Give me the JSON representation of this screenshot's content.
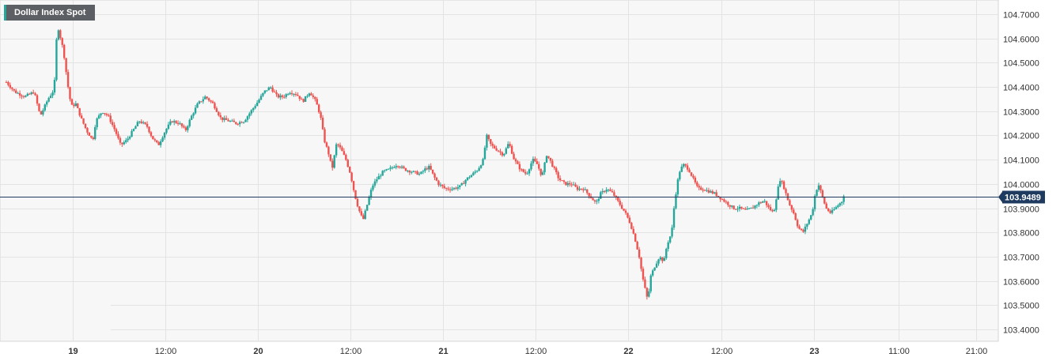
{
  "chart_data": {
    "type": "candlestick",
    "title": "Dollar Index Spot",
    "y_ticks": [
      "103.4000",
      "103.5000",
      "103.6000",
      "103.7000",
      "103.8000",
      "103.9000",
      "104.0000",
      "104.1000",
      "104.2000",
      "104.3000",
      "104.4000",
      "104.5000",
      "104.6000",
      "104.7000"
    ],
    "y_tick_values": [
      103.4,
      103.5,
      103.6,
      103.7,
      103.8,
      103.9,
      104.0,
      104.1,
      104.2,
      104.3,
      104.4,
      104.5,
      104.6,
      104.7
    ],
    "ylim": [
      103.36,
      104.74
    ],
    "x_ticks": [
      {
        "label": "19",
        "t": 27
      },
      {
        "label": "12:00",
        "t": 39
      },
      {
        "label": "20",
        "t": 51
      },
      {
        "label": "12:00",
        "t": 63
      },
      {
        "label": "21",
        "t": 75
      },
      {
        "label": "12:00",
        "t": 87
      },
      {
        "label": "22",
        "t": 99
      },
      {
        "label": "12:00",
        "t": 111
      },
      {
        "label": "23",
        "t": 123
      },
      {
        "label": "11:00",
        "t": 134
      },
      {
        "label": "21:00",
        "t": 144
      }
    ],
    "xlim": [
      18.4,
      146.2
    ],
    "last_price": "103.9489",
    "last_value": 103.9489,
    "grid": true,
    "colors": {
      "up": "#26a69a",
      "down": "#ef5350",
      "last_line": "#1e3a5f",
      "last_badge": "#1e3a5f",
      "grid": "#e3e3e3",
      "plot_bg": "#f7f7f7"
    },
    "close_path": [
      [
        18.4,
        104.42
      ],
      [
        19.5,
        104.38
      ],
      [
        20.8,
        104.36
      ],
      [
        22.0,
        104.38
      ],
      [
        22.8,
        104.28
      ],
      [
        23.8,
        104.35
      ],
      [
        24.6,
        104.39
      ],
      [
        25.0,
        104.66
      ],
      [
        25.8,
        104.55
      ],
      [
        26.4,
        104.4
      ],
      [
        26.8,
        104.32
      ],
      [
        27.4,
        104.33
      ],
      [
        28.1,
        104.27
      ],
      [
        28.8,
        104.22
      ],
      [
        29.6,
        104.18
      ],
      [
        30.0,
        104.26
      ],
      [
        30.8,
        104.3
      ],
      [
        31.6,
        104.28
      ],
      [
        32.5,
        104.22
      ],
      [
        33.2,
        104.16
      ],
      [
        34.0,
        104.18
      ],
      [
        34.8,
        104.22
      ],
      [
        35.6,
        104.26
      ],
      [
        36.6,
        104.24
      ],
      [
        37.3,
        104.19
      ],
      [
        38.1,
        104.16
      ],
      [
        39.0,
        104.22
      ],
      [
        39.8,
        104.26
      ],
      [
        40.8,
        104.25
      ],
      [
        41.6,
        104.22
      ],
      [
        42.4,
        104.28
      ],
      [
        43.2,
        104.33
      ],
      [
        44.2,
        104.36
      ],
      [
        45.2,
        104.33
      ],
      [
        46.2,
        104.27
      ],
      [
        47.2,
        104.26
      ],
      [
        48.2,
        104.25
      ],
      [
        49.2,
        104.26
      ],
      [
        50.1,
        104.3
      ],
      [
        51.0,
        104.34
      ],
      [
        51.8,
        104.38
      ],
      [
        52.6,
        104.4
      ],
      [
        53.5,
        104.36
      ],
      [
        54.3,
        104.36
      ],
      [
        55.1,
        104.38
      ],
      [
        56.0,
        104.37
      ],
      [
        56.8,
        104.34
      ],
      [
        57.7,
        104.38
      ],
      [
        58.5,
        104.34
      ],
      [
        59.1,
        104.28
      ],
      [
        59.6,
        104.18
      ],
      [
        60.2,
        104.12
      ],
      [
        60.6,
        104.06
      ],
      [
        61.2,
        104.17
      ],
      [
        61.8,
        104.14
      ],
      [
        62.4,
        104.1
      ],
      [
        63.0,
        104.04
      ],
      [
        63.5,
        103.96
      ],
      [
        64.0,
        103.9
      ],
      [
        64.6,
        103.85
      ],
      [
        65.2,
        103.92
      ],
      [
        65.8,
        103.99
      ],
      [
        66.4,
        104.02
      ],
      [
        67.2,
        104.05
      ],
      [
        68.0,
        104.06
      ],
      [
        69.0,
        104.08
      ],
      [
        70.0,
        104.06
      ],
      [
        71.0,
        104.05
      ],
      [
        72.0,
        104.04
      ],
      [
        72.6,
        104.06
      ],
      [
        73.2,
        104.07
      ],
      [
        73.8,
        104.03
      ],
      [
        74.4,
        104.0
      ],
      [
        75.3,
        103.98
      ],
      [
        76.2,
        103.98
      ],
      [
        77.2,
        103.99
      ],
      [
        78.0,
        104.02
      ],
      [
        78.8,
        104.04
      ],
      [
        79.5,
        104.06
      ],
      [
        80.2,
        104.1
      ],
      [
        80.6,
        104.2
      ],
      [
        81.2,
        104.16
      ],
      [
        82.0,
        104.14
      ],
      [
        82.8,
        104.12
      ],
      [
        83.5,
        104.17
      ],
      [
        84.2,
        104.1
      ],
      [
        85.0,
        104.06
      ],
      [
        85.8,
        104.04
      ],
      [
        86.6,
        104.1
      ],
      [
        87.2,
        104.08
      ],
      [
        87.8,
        104.03
      ],
      [
        88.4,
        104.12
      ],
      [
        88.8,
        104.1
      ],
      [
        89.4,
        104.06
      ],
      [
        90.0,
        104.02
      ],
      [
        90.8,
        104.0
      ],
      [
        91.6,
        104.0
      ],
      [
        92.4,
        103.98
      ],
      [
        93.2,
        103.98
      ],
      [
        94.0,
        103.95
      ],
      [
        94.8,
        103.92
      ],
      [
        95.4,
        103.96
      ],
      [
        96.2,
        103.98
      ],
      [
        97.0,
        103.96
      ],
      [
        97.8,
        103.92
      ],
      [
        98.6,
        103.88
      ],
      [
        99.2,
        103.84
      ],
      [
        99.8,
        103.78
      ],
      [
        100.4,
        103.7
      ],
      [
        100.8,
        103.62
      ],
      [
        101.2,
        103.56
      ],
      [
        101.5,
        103.52
      ],
      [
        101.9,
        103.62
      ],
      [
        102.4,
        103.66
      ],
      [
        103.0,
        103.7
      ],
      [
        103.6,
        103.68
      ],
      [
        104.0,
        103.75
      ],
      [
        104.6,
        103.8
      ],
      [
        104.9,
        103.9
      ],
      [
        105.3,
        104.0
      ],
      [
        105.7,
        104.06
      ],
      [
        106.2,
        104.08
      ],
      [
        106.8,
        104.06
      ],
      [
        107.4,
        104.02
      ],
      [
        108.0,
        103.98
      ],
      [
        108.6,
        103.98
      ],
      [
        109.4,
        103.97
      ],
      [
        110.2,
        103.96
      ],
      [
        111.0,
        103.94
      ],
      [
        111.8,
        103.92
      ],
      [
        112.6,
        103.9
      ],
      [
        113.4,
        103.9
      ],
      [
        114.2,
        103.89
      ],
      [
        115.0,
        103.9
      ],
      [
        115.8,
        103.92
      ],
      [
        116.6,
        103.93
      ],
      [
        117.2,
        103.9
      ],
      [
        117.8,
        103.88
      ],
      [
        118.2,
        103.95
      ],
      [
        118.6,
        104.02
      ],
      [
        119.0,
        104.0
      ],
      [
        119.4,
        103.96
      ],
      [
        119.8,
        103.92
      ],
      [
        120.4,
        103.88
      ],
      [
        121.0,
        103.82
      ],
      [
        121.6,
        103.8
      ],
      [
        122.2,
        103.84
      ],
      [
        122.8,
        103.88
      ],
      [
        123.2,
        103.96
      ],
      [
        123.6,
        104.0
      ],
      [
        124.0,
        103.96
      ],
      [
        124.6,
        103.9
      ],
      [
        125.2,
        103.88
      ],
      [
        125.8,
        103.9
      ],
      [
        126.4,
        103.92
      ],
      [
        127.0,
        103.94
      ]
    ]
  }
}
